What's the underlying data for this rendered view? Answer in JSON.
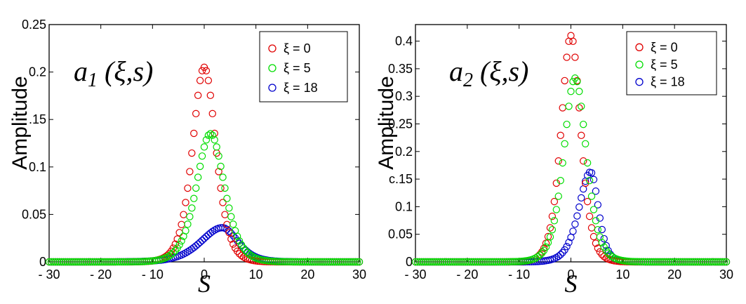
{
  "chart_data": [
    {
      "type": "scatter",
      "annotation": "a1 (ξ,s)",
      "xlabel": "S",
      "ylabel": "Amplitude",
      "xlim": [
        -30,
        30
      ],
      "ylim": [
        0,
        0.25
      ],
      "xticks": [
        "- 30",
        "- 20",
        "- 10",
        "0",
        "10",
        "20",
        "30"
      ],
      "xtick_values": [
        -30,
        -20,
        -10,
        0,
        10,
        20,
        30
      ],
      "yticks": [
        "0",
        "0.05",
        "0.1",
        ".15",
        "0.2",
        "0.25"
      ],
      "ytick_values": [
        0,
        0.05,
        0.1,
        0.15,
        0.2,
        0.25
      ],
      "grid": false,
      "legend_position": "top-right",
      "series": [
        {
          "name": "ξ = 0",
          "color": "#e00000",
          "shape": "sech2",
          "peak": 0.205,
          "center": 0.0,
          "width": 3.0
        },
        {
          "name": "ξ = 5",
          "color": "#00dd00",
          "shape": "sech2",
          "peak": 0.135,
          "center": 1.2,
          "width": 3.6
        },
        {
          "name": "ξ = 18",
          "color": "#0000cc",
          "shape": "skew",
          "peak": 0.036,
          "center": 3.5,
          "width_left": 5.5,
          "width_right": 4.0
        }
      ]
    },
    {
      "type": "scatter",
      "annotation": "a2 (ξ,s)",
      "xlabel": "S",
      "ylabel": "Amplitude",
      "xlim": [
        -30,
        30
      ],
      "ylim": [
        0,
        0.43
      ],
      "xticks": [
        "- 30",
        "- 20",
        "- 10",
        "0",
        "10",
        "20",
        "30"
      ],
      "xtick_values": [
        -30,
        -20,
        -10,
        0,
        10,
        20,
        30
      ],
      "yticks": [
        "0",
        "0.05",
        "0.1",
        "c.15",
        "0.2",
        "0.25",
        "0.3",
        "0.35",
        "0.4"
      ],
      "ytick_values": [
        0,
        0.05,
        0.1,
        0.15,
        0.2,
        0.25,
        0.3,
        0.35,
        0.4
      ],
      "grid": false,
      "legend_position": "top-right",
      "series": [
        {
          "name": "ξ = 0",
          "color": "#e00000",
          "shape": "sech2",
          "peak": 0.41,
          "center": 0.0,
          "width": 2.5
        },
        {
          "name": "ξ = 5",
          "color": "#00dd00",
          "shape": "sech2",
          "peak": 0.333,
          "center": 0.8,
          "width": 2.9
        },
        {
          "name": "ξ = 18",
          "color": "#0000cc",
          "shape": "skew",
          "peak": 0.163,
          "center": 3.8,
          "width_left": 3.0,
          "width_right": 2.0
        }
      ]
    }
  ]
}
